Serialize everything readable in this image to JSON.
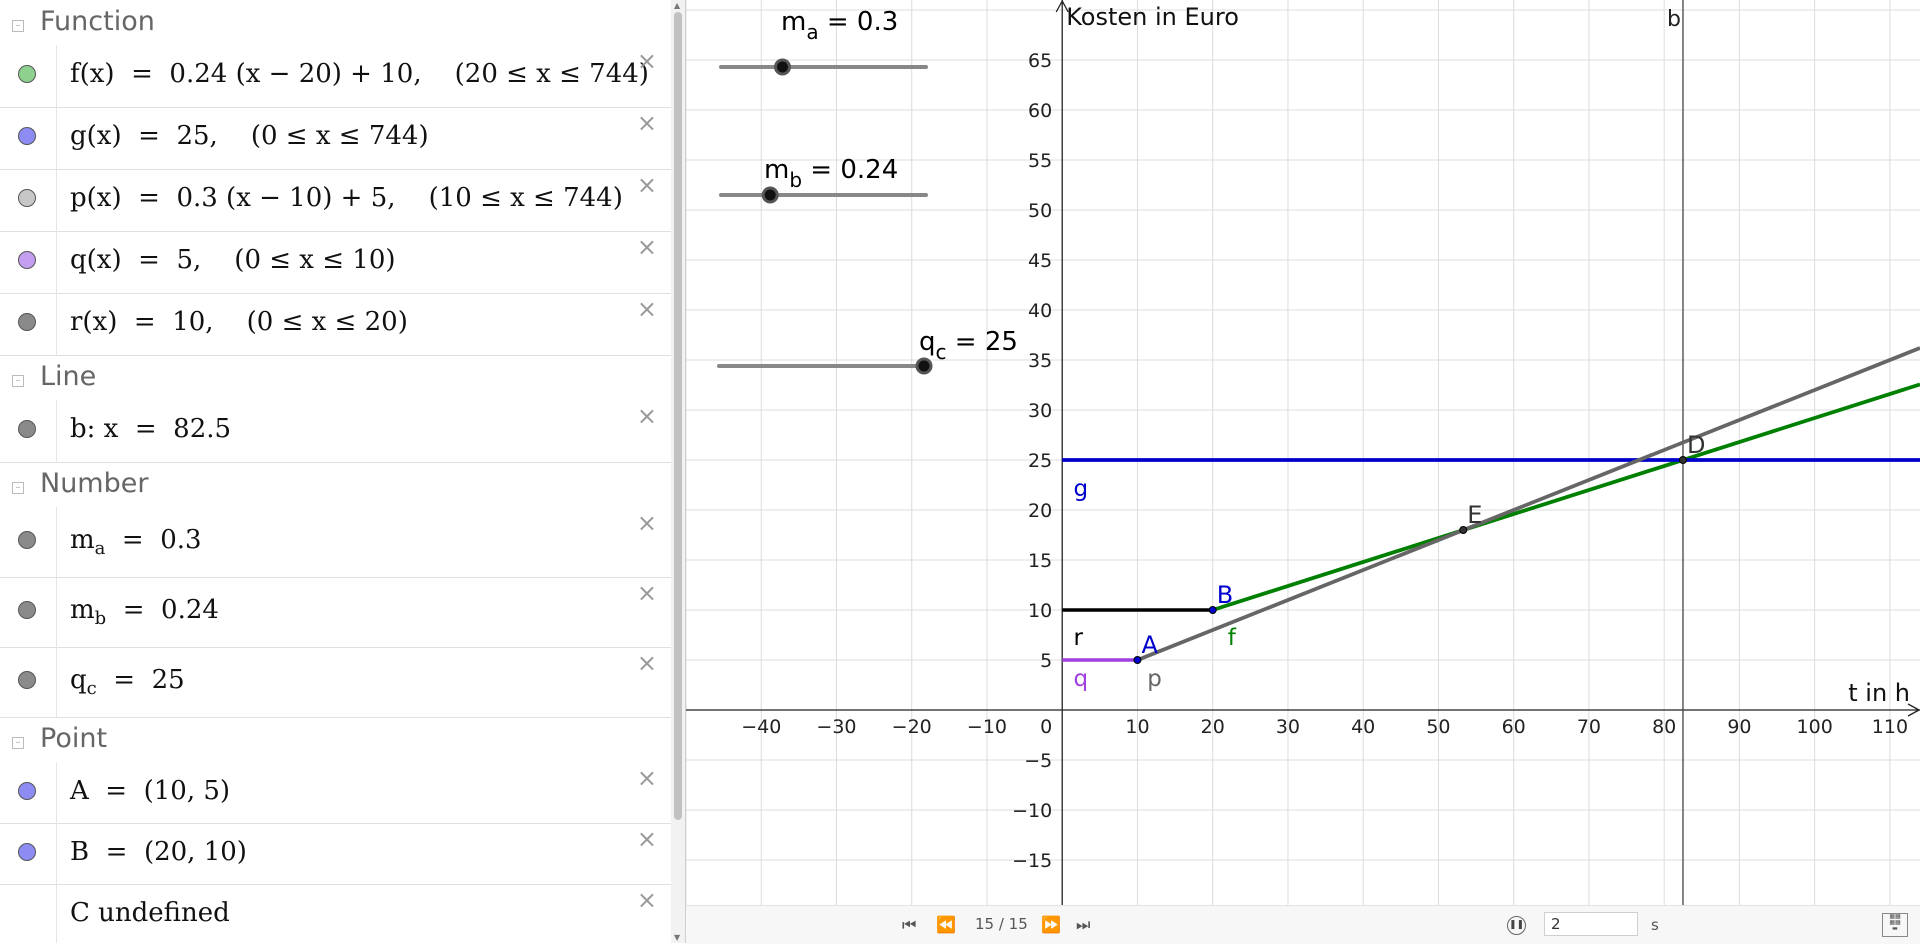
{
  "algebra": {
    "categories": {
      "function": "Function",
      "line": "Line",
      "number": "Number",
      "point": "Point"
    },
    "functions": [
      {
        "name": "f",
        "expr": "f(x)  =  0.24 (x − 20) + 10,    (20 ≤ x ≤ 744)",
        "color": "#8ed08e"
      },
      {
        "name": "g",
        "expr": "g(x)  =  25,    (0 ≤ x ≤ 744)",
        "color": "#8c8cf2"
      },
      {
        "name": "p",
        "expr": "p(x)  =  0.3 (x − 10) + 5,    (10 ≤ x ≤ 744)",
        "color": "#c7c7c7"
      },
      {
        "name": "q",
        "expr": "q(x)  =  5,    (0 ≤ x ≤ 10)",
        "color": "#c49ef0"
      },
      {
        "name": "r",
        "expr": "r(x)  =  10,    (0 ≤ x ≤ 20)",
        "color": "#8a8a8a"
      }
    ],
    "lines": [
      {
        "expr": "b: x  =  82.5",
        "color": "#8a8a8a"
      }
    ],
    "numbers": [
      {
        "base": "m",
        "sub": "a",
        "rest": "  =  0.3",
        "color": "#8a8a8a"
      },
      {
        "base": "m",
        "sub": "b",
        "rest": "  =  0.24",
        "color": "#8a8a8a"
      },
      {
        "base": "q",
        "sub": "c",
        "rest": "  =  25",
        "color": "#8a8a8a"
      }
    ],
    "points": [
      {
        "expr": "A  =  (10, 5)",
        "color": "#8c8cf2"
      },
      {
        "expr": "B  =  (20, 10)",
        "color": "#8c8cf2"
      },
      {
        "expr": "C undefined",
        "color": ""
      }
    ]
  },
  "graph": {
    "ylabel": "Kosten in Euro",
    "xlabel": "t in h",
    "vline_label": "b",
    "x_ticks": [
      -40,
      -30,
      -20,
      -10,
      10,
      20,
      30,
      40,
      50,
      60,
      70,
      80,
      90,
      100,
      110
    ],
    "y_ticks": [
      -15,
      -10,
      -5,
      5,
      10,
      15,
      20,
      25,
      30,
      35,
      40,
      45,
      50,
      55,
      60,
      65
    ],
    "origin_label": "0",
    "sliders": [
      {
        "base": "m",
        "sub": "a",
        "rest": " = 0.3",
        "value": 0.3,
        "min": 0,
        "max": 1
      },
      {
        "base": "m",
        "sub": "b",
        "rest": " = 0.24",
        "value": 0.24,
        "min": 0,
        "max": 1
      },
      {
        "base": "q",
        "sub": "c",
        "rest": " = 25",
        "value": 25,
        "min": 0,
        "max": 25
      }
    ],
    "chart_data": {
      "type": "line",
      "xlabel": "t in h",
      "ylabel": "Kosten in Euro",
      "xlim": [
        -50,
        114
      ],
      "ylim": [
        -19.5,
        71
      ],
      "grid": true,
      "series": [
        {
          "name": "f",
          "color": "#008000",
          "x": [
            20,
            114
          ],
          "y": [
            10,
            32.56
          ]
        },
        {
          "name": "g",
          "color": "#0000cc",
          "x": [
            0,
            114
          ],
          "y": [
            25,
            25
          ]
        },
        {
          "name": "p",
          "color": "#666666",
          "x": [
            10,
            114
          ],
          "y": [
            5,
            36.2
          ]
        },
        {
          "name": "q",
          "color": "#a040e0",
          "x": [
            0,
            10
          ],
          "y": [
            5,
            5
          ]
        },
        {
          "name": "r",
          "color": "#000000",
          "x": [
            0,
            20
          ],
          "y": [
            10,
            10
          ]
        }
      ],
      "vertical_line": {
        "name": "b",
        "x": 82.5
      },
      "points": [
        {
          "name": "A",
          "x": 10,
          "y": 5,
          "color": "#0000cc"
        },
        {
          "name": "B",
          "x": 20,
          "y": 10,
          "color": "#0000cc"
        },
        {
          "name": "E",
          "x": 53.3,
          "y": 18,
          "color": "#333333"
        },
        {
          "name": "D",
          "x": 82.5,
          "y": 25,
          "color": "#333333"
        }
      ]
    }
  },
  "playbar": {
    "first": "⏮",
    "prev": "⏪",
    "step": "15 / 15",
    "next": "⏩",
    "last": "⏭",
    "pause": "❚❚",
    "seconds_value": "2",
    "seconds_unit": "s",
    "keyboard_icon": "keyboard-icon"
  }
}
